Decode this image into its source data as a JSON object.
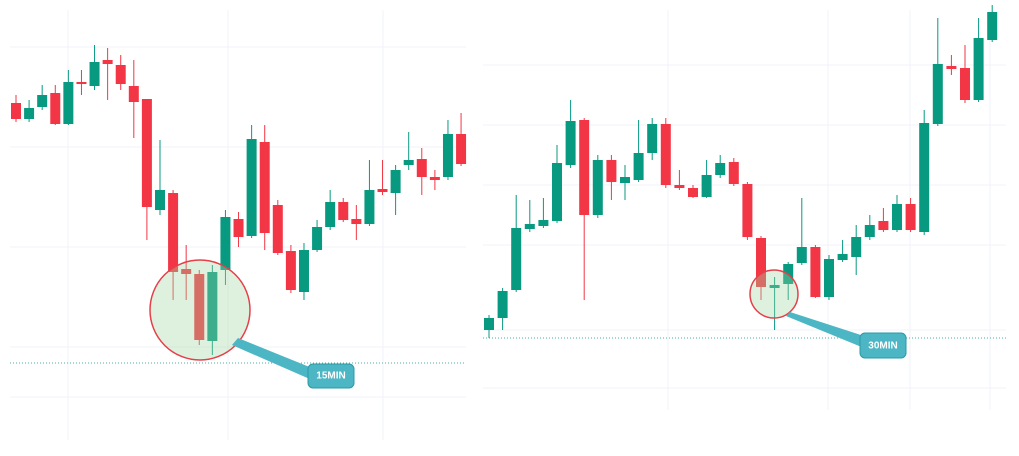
{
  "chart_data": [
    {
      "type": "candlestick",
      "annotation": "15MIN",
      "up_color": "#089981",
      "down_color": "#f23645",
      "ylim": [
        0,
        456
      ],
      "reference_line": 93,
      "open": [
        353,
        337,
        349,
        363,
        332,
        374,
        370,
        396,
        391,
        370,
        357,
        246,
        263,
        187,
        182,
        115,
        186,
        237,
        220,
        314,
        251,
        205,
        164,
        206,
        229,
        254,
        237,
        232,
        267,
        263,
        291,
        297,
        279,
        279,
        322
      ],
      "high": [
        361,
        356,
        371,
        371,
        386,
        386,
        411,
        408,
        401,
        396,
        357,
        316,
        266,
        211,
        186,
        191,
        246,
        244,
        331,
        331,
        256,
        211,
        213,
        236,
        266,
        258,
        251,
        296,
        296,
        291,
        324,
        308,
        286,
        336,
        343
      ],
      "low": [
        334,
        334,
        346,
        331,
        331,
        361,
        366,
        356,
        366,
        318,
        216,
        241,
        156,
        156,
        111,
        101,
        171,
        209,
        218,
        206,
        201,
        163,
        156,
        204,
        226,
        234,
        216,
        230,
        261,
        241,
        286,
        261,
        266,
        276,
        290
      ],
      "close": [
        337,
        348,
        361,
        332,
        374,
        372,
        394,
        392,
        372,
        354,
        249,
        266,
        184,
        182,
        116,
        184,
        239,
        219,
        317,
        223,
        203,
        166,
        206,
        229,
        254,
        236,
        232,
        266,
        264,
        286,
        296,
        279,
        276,
        322,
        292
      ]
    },
    {
      "type": "candlestick",
      "annotation": "30MIN",
      "up_color": "#089981",
      "down_color": "#f23645",
      "ylim": [
        0,
        456
      ],
      "reference_line": 118,
      "open": [
        126,
        138,
        166,
        227,
        230,
        235,
        291,
        336,
        241,
        296,
        273,
        276,
        303,
        332,
        271,
        268,
        259,
        281,
        294,
        272,
        218,
        168,
        172,
        193,
        209,
        159,
        196,
        199,
        219,
        235,
        226,
        252,
        224,
        332,
        390,
        388,
        356,
        416
      ],
      "high": [
        141,
        168,
        261,
        256,
        258,
        311,
        356,
        338,
        301,
        301,
        291,
        336,
        338,
        338,
        286,
        271,
        296,
        301,
        298,
        274,
        220,
        179,
        194,
        258,
        211,
        201,
        216,
        231,
        241,
        248,
        261,
        258,
        346,
        438,
        401,
        411,
        438,
        451
      ],
      "low": [
        118,
        126,
        164,
        224,
        228,
        233,
        288,
        156,
        238,
        256,
        256,
        274,
        296,
        268,
        266,
        258,
        258,
        278,
        270,
        216,
        156,
        126,
        156,
        191,
        158,
        156,
        194,
        181,
        216,
        224,
        224,
        224,
        221,
        330,
        381,
        353,
        354,
        414
      ],
      "close": [
        138,
        165,
        228,
        232,
        236,
        293,
        335,
        241,
        296,
        274,
        279,
        303,
        332,
        271,
        268,
        259,
        281,
        293,
        272,
        219,
        169,
        171,
        192,
        209,
        159,
        197,
        202,
        219,
        231,
        226,
        252,
        226,
        333,
        392,
        387,
        356,
        418,
        444
      ]
    }
  ]
}
